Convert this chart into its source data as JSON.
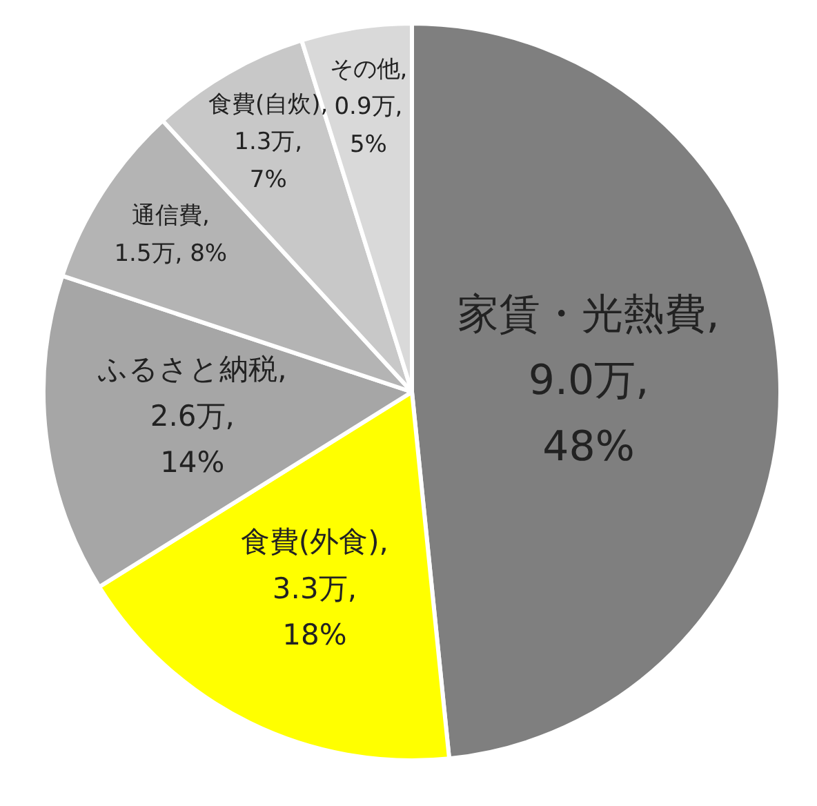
{
  "chart_data": {
    "type": "pie",
    "categories": [
      "家賃・光熱費",
      "食費(外食)",
      "ふるさと納税",
      "通信費",
      "食費(自炊)",
      "その他"
    ],
    "values": [
      9.0,
      3.3,
      2.6,
      1.5,
      1.3,
      0.9
    ],
    "colors": [
      "#7f7f7f",
      "#ffff00",
      "#a6a6a6",
      "#b4b4b4",
      "#c8c8c8",
      "#d9d9d9"
    ],
    "value_labels": [
      ",\n9.0万,\n48%",
      ",\n3.3万,\n18%",
      ",\n2.6万,\n14%",
      ",\n1.5万, 8%",
      ",\n1.3万,\n7%",
      ",\n0.9万,\n5%"
    ],
    "legend": false
  }
}
